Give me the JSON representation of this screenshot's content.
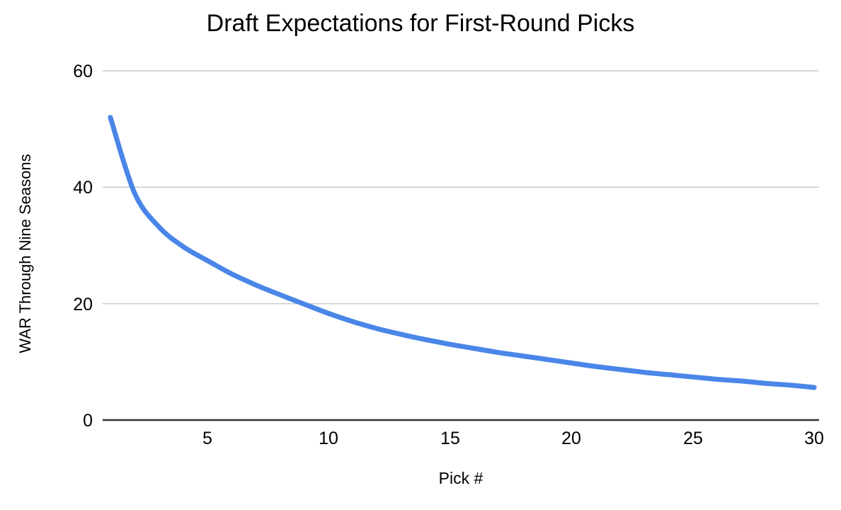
{
  "chart_data": {
    "type": "line",
    "title": "Draft Expectations for First-Round Picks",
    "xlabel": "Pick #",
    "ylabel": "WAR Through Nine Seasons",
    "x": [
      1,
      2,
      3,
      4,
      5,
      6,
      7,
      8,
      9,
      10,
      11,
      12,
      13,
      14,
      15,
      16,
      17,
      18,
      19,
      20,
      21,
      22,
      23,
      24,
      25,
      26,
      27,
      28,
      29,
      30
    ],
    "series": [
      {
        "values": [
          52,
          39,
          33.2,
          29.8,
          27.4,
          25.1,
          23.2,
          21.5,
          19.9,
          18.3,
          16.9,
          15.7,
          14.7,
          13.8,
          13,
          12.3,
          11.6,
          11,
          10.4,
          9.8,
          9.2,
          8.7,
          8.2,
          7.8,
          7.4,
          7,
          6.7,
          6.3,
          6,
          5.6
        ]
      }
    ],
    "xlim": [
      1,
      30
    ],
    "ylim": [
      0,
      60
    ],
    "yticks": [
      0,
      20,
      40,
      60
    ],
    "xticks": [
      5,
      10,
      15,
      20,
      25,
      30
    ],
    "ytick_labels": [
      "60",
      "40",
      "20",
      "0"
    ],
    "xtick_labels": [
      "5",
      "10",
      "15",
      "20",
      "25",
      "30"
    ],
    "grid": "horizontal",
    "legend": "none",
    "line_color": "#4a86e8",
    "line_width": 7,
    "grid_color": "#cccccc",
    "axis_color": "#333333",
    "background": "#ffffff",
    "text_color": "#000000"
  }
}
